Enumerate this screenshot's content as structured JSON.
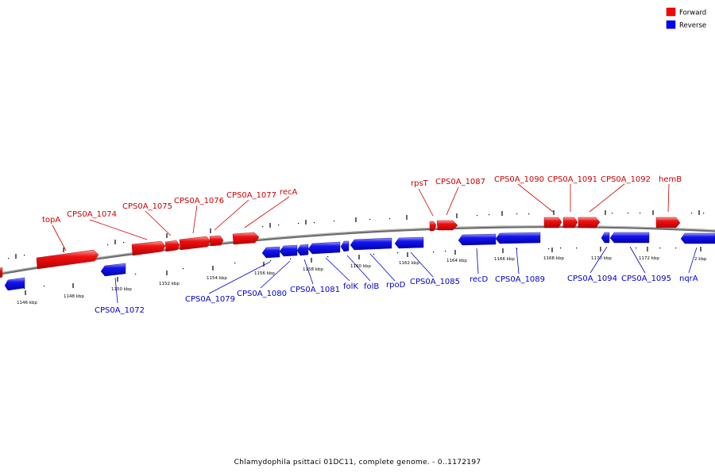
{
  "caption": "Chlamydophila psittaci 01DC11, complete genome. - 0..1172197",
  "legend": [
    {
      "label": "Forward",
      "color": "#ff0000"
    },
    {
      "label": "Reverse",
      "color": "#0000ff"
    }
  ],
  "ticks": [
    "1146 kbp",
    "1148 kbp",
    "1150 kbp",
    "1152 kbp",
    "1154 kbp",
    "1156 kbp",
    "1158 kbp",
    "1160 kbp",
    "1162 kbp",
    "1164 kbp",
    "1166 kbp",
    "1168 kbp",
    "1170 kbp",
    "1172 kbp",
    "2 kbp"
  ],
  "genes": {
    "forward": [
      "topA",
      "CPS0A_1074",
      "CPS0A_1075",
      "CPS0A_1076",
      "CPS0A_1077",
      "recA",
      "rpsT",
      "CPS0A_1087",
      "CPS0A_1090",
      "CPS0A_1091",
      "CPS0A_1092",
      "hemB"
    ],
    "reverse": [
      "CPS0A_1072",
      "CPS0A_1079",
      "CPS0A_1080",
      "CPS0A_1081",
      "folK",
      "folB",
      "rpoD",
      "CPS0A_1085",
      "recD",
      "CPS0A_1089",
      "CPS0A_1094",
      "CPS0A_1095",
      "nqrA"
    ]
  }
}
